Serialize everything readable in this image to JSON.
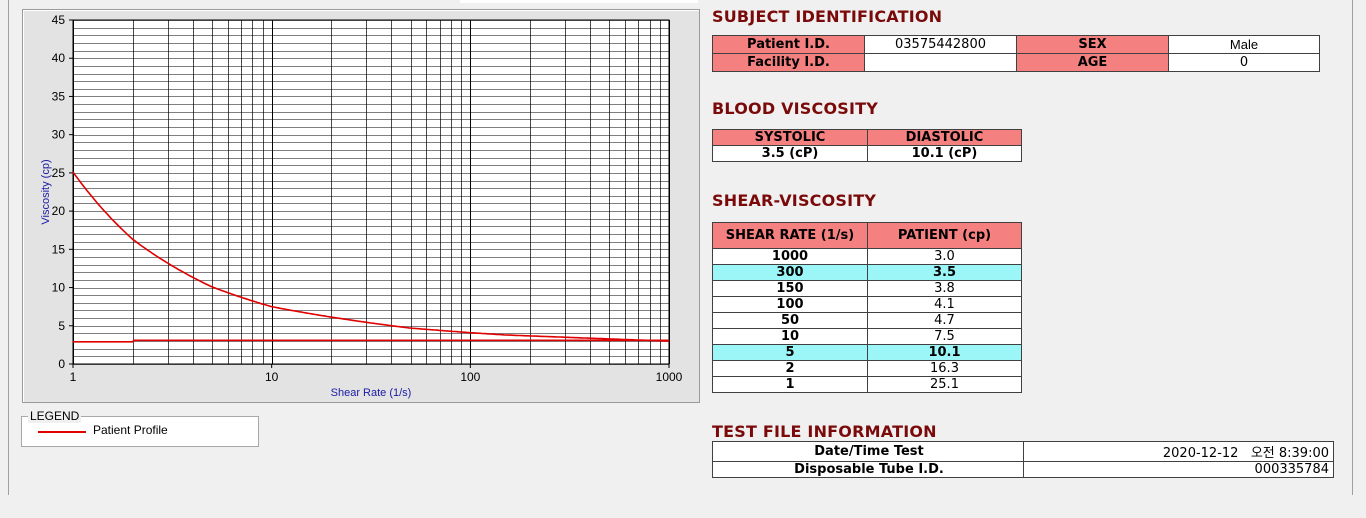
{
  "subject": {
    "title": "SUBJECT IDENTIFICATION",
    "patient_id_label": "Patient I.D.",
    "patient_id": "03575442800",
    "sex_label": "SEX",
    "sex": "Male",
    "facility_id_label": "Facility I.D.",
    "facility_id": "",
    "age_label": "AGE",
    "age": "0"
  },
  "blood": {
    "title": "BLOOD VISCOSITY",
    "systolic_label": "SYSTOLIC",
    "diastolic_label": "DIASTOLIC",
    "systolic": "3.5 (cP)",
    "diastolic": "10.1 (cP)"
  },
  "shear": {
    "title": "SHEAR-VISCOSITY",
    "col_rate": "SHEAR RATE (1/s)",
    "col_patient": "PATIENT (cp)",
    "rows": [
      {
        "rate": "1000",
        "value": "3.0"
      },
      {
        "rate": "300",
        "value": "3.5"
      },
      {
        "rate": "150",
        "value": "3.8"
      },
      {
        "rate": "100",
        "value": "4.1"
      },
      {
        "rate": "50",
        "value": "4.7"
      },
      {
        "rate": "10",
        "value": "7.5"
      },
      {
        "rate": "5",
        "value": "10.1"
      },
      {
        "rate": "2",
        "value": "16.3"
      },
      {
        "rate": "1",
        "value": "25.1"
      }
    ]
  },
  "testfile": {
    "title": "TEST FILE INFORMATION",
    "datetime_label": "Date/Time Test",
    "datetime": "2020-12-12   오전 8:39:00",
    "tube_label": "Disposable Tube I.D.",
    "tube": "000335784"
  },
  "legend": {
    "title": "LEGEND",
    "label": "Patient Profile"
  },
  "colors": {
    "series": "#e00000",
    "header": "#f58080",
    "highlight": "#9cf5f7",
    "title": "#7a0a0a"
  },
  "chart_data": {
    "type": "line",
    "xlabel": "Shear Rate (1/s)",
    "ylabel": "Viscosity (cp)",
    "xscale": "log",
    "xlim": [
      1,
      1000
    ],
    "ylim": [
      0,
      45
    ],
    "xticks": [
      "1",
      "10",
      "100",
      "1000"
    ],
    "yticks": [
      "0",
      "5",
      "10",
      "15",
      "20",
      "25",
      "30",
      "35",
      "40",
      "45"
    ],
    "grid": true,
    "series": [
      {
        "name": "Patient Profile",
        "x": [
          1,
          2,
          5,
          10,
          50,
          100,
          150,
          300,
          1000
        ],
        "y": [
          25.1,
          16.3,
          10.1,
          7.5,
          4.7,
          4.1,
          3.8,
          3.5,
          3.0
        ]
      },
      {
        "name": "",
        "x": [
          1,
          2,
          2.02,
          1000
        ],
        "y": [
          2.9,
          2.9,
          3.1,
          3.1
        ]
      }
    ]
  }
}
